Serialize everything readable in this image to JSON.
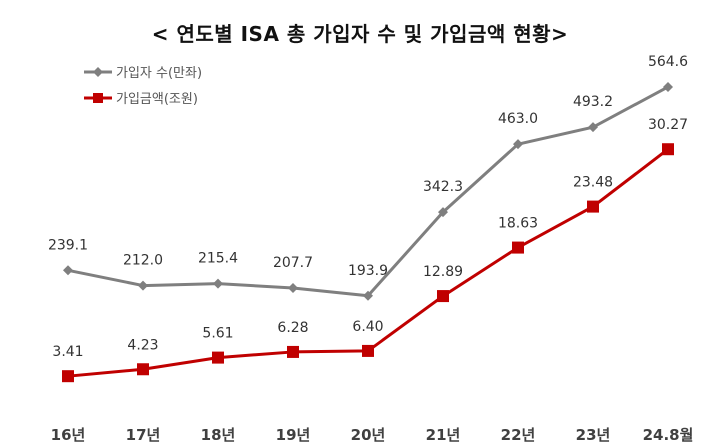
{
  "chart_data": {
    "type": "line",
    "title": "< 연도별 ISA 총 가입자 수 및 가입금액 현황>",
    "categories": [
      "16년",
      "17년",
      "18년",
      "19년",
      "20년",
      "21년",
      "22년",
      "23년",
      "24.8월"
    ],
    "series": [
      {
        "name": "가입자 수(만좌)",
        "values": [
          239.1,
          212.0,
          215.4,
          207.7,
          193.9,
          342.3,
          463.0,
          493.2,
          564.6
        ],
        "labels": [
          "239.1",
          "212.0",
          "215.4",
          "207.7",
          "193.9",
          "342.3",
          "463.0",
          "493.2",
          "564.6"
        ],
        "color": "#7f7f7f",
        "marker": "diamond",
        "axis": "left",
        "ylim": [
          0,
          600
        ]
      },
      {
        "name": "가입금액(조원)",
        "values": [
          3.41,
          4.23,
          5.61,
          6.28,
          6.4,
          12.89,
          18.63,
          23.48,
          30.27
        ],
        "labels": [
          "3.41",
          "4.23",
          "5.61",
          "6.28",
          "6.40",
          "12.89",
          "18.63",
          "23.48",
          "30.27"
        ],
        "color": "#c00000",
        "marker": "square",
        "axis": "right",
        "ylim": [
          0,
          40
        ]
      }
    ],
    "xlabel": "",
    "ylabel": "",
    "grid": false,
    "axes_visible": false,
    "legend": "top-left"
  }
}
